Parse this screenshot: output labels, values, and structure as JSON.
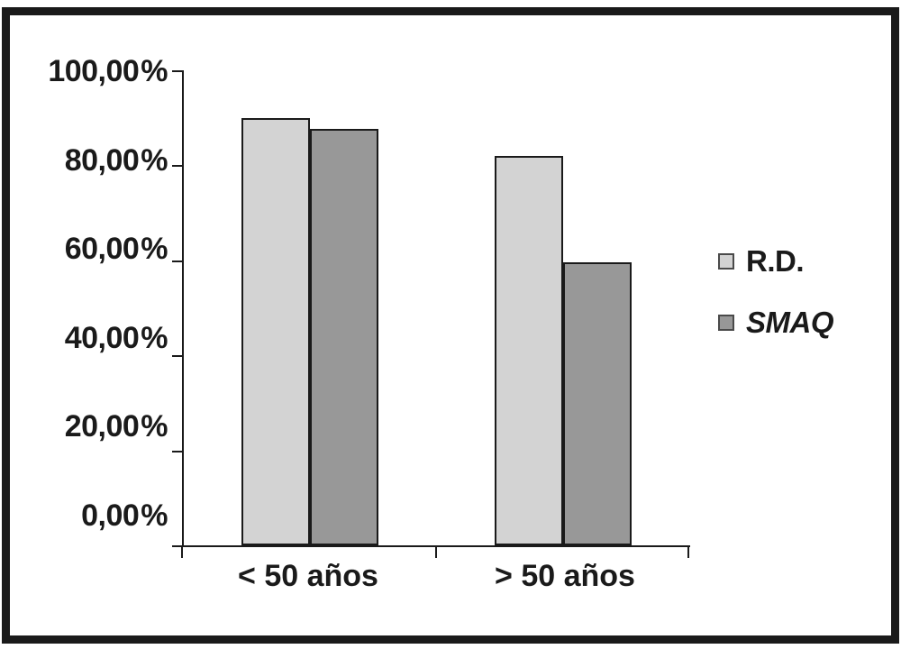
{
  "chart_data": {
    "type": "bar",
    "categories": [
      "< 50 años",
      "> 50 años"
    ],
    "series": [
      {
        "name": "R.D.",
        "values": [
          90.0,
          82.0
        ],
        "color": "#d3d3d3"
      },
      {
        "name": "SMAQ",
        "values": [
          87.7,
          59.6
        ],
        "color": "#989898"
      }
    ],
    "y_ticks": [
      "100,00 %",
      "80,00 %",
      "60,00 %",
      "40,00 %",
      "20,00 %",
      "0,00 %"
    ],
    "y_tick_values": [
      100,
      80,
      60,
      40,
      20,
      0
    ],
    "ylim": [
      0,
      100
    ],
    "grid": false,
    "legend_position": "right"
  },
  "colors": {
    "background": "#ffffff",
    "frame": "#1a1a1a",
    "axis": "#1a1a1a",
    "text": "#1a1a1a",
    "bar_border": "#1a1a1a",
    "series_rd": "#d3d3d3",
    "series_smaq": "#989898"
  }
}
